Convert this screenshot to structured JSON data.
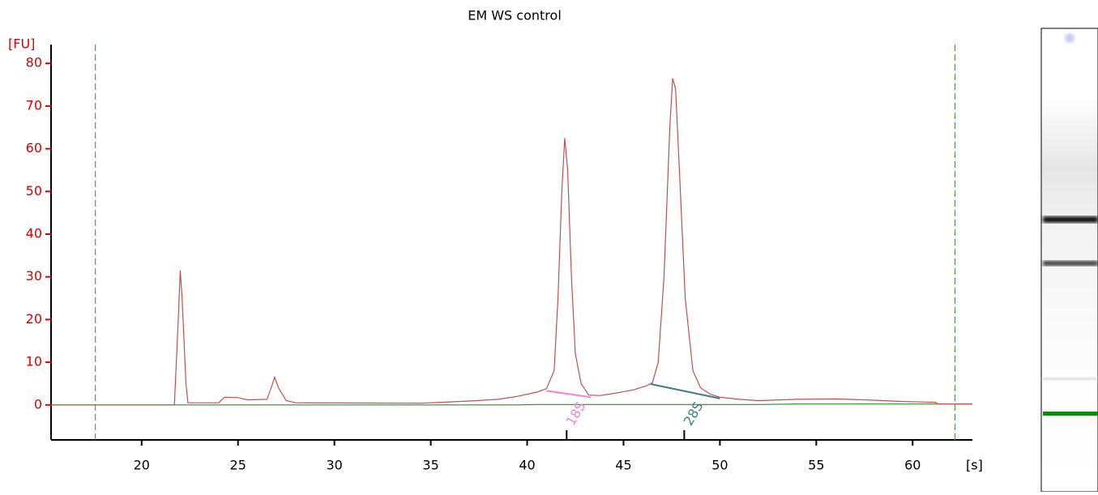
{
  "chart_data": {
    "type": "line",
    "title": "EM WS control",
    "ylabel": "[FU]",
    "xlabel": "[s]",
    "x": [
      15.3,
      21.7,
      21.9,
      22.0,
      22.1,
      22.3,
      22.4,
      24.0,
      24.3,
      25.0,
      25.5,
      26.5,
      26.8,
      26.9,
      27.1,
      27.5,
      28.0,
      34.5,
      35.5,
      37.0,
      38.5,
      39.5,
      40.5,
      41.0,
      41.4,
      41.6,
      41.8,
      41.95,
      42.1,
      42.3,
      42.5,
      42.8,
      43.2,
      43.8,
      44.5,
      45.5,
      46.2,
      46.5,
      46.8,
      47.1,
      47.4,
      47.55,
      47.7,
      47.9,
      48.2,
      48.6,
      49.0,
      49.5,
      50.0,
      51.0,
      52.0,
      54.0,
      56.0,
      58.0,
      59.5,
      61.2,
      61.3,
      63.1
    ],
    "series": [
      {
        "color": "#c0504d",
        "values": [
          0,
          0,
          20,
          31.5,
          25,
          5,
          0.5,
          0.5,
          1.8,
          1.7,
          1.2,
          1.3,
          5,
          6.5,
          4,
          1,
          0.5,
          0.4,
          0.6,
          0.9,
          1.3,
          2,
          3,
          3.8,
          8,
          25,
          50,
          62.5,
          55,
          30,
          12,
          5,
          2.3,
          2.2,
          2.7,
          3.5,
          4.5,
          5.2,
          10,
          30,
          65,
          76.5,
          74,
          55,
          25,
          8,
          4,
          2.5,
          1.8,
          1.3,
          1,
          1.3,
          1.4,
          1.1,
          0.8,
          0.6,
          0.2,
          0.2
        ]
      },
      {
        "color": "#2e8b2e",
        "values": [
          0,
          0,
          0,
          0,
          0,
          0,
          0,
          0,
          0,
          0,
          0,
          0,
          0,
          0,
          0,
          0,
          0,
          0,
          0,
          0,
          0,
          0,
          0.1,
          0.1,
          0.1,
          0.1,
          0.1,
          0.1,
          0.1,
          0.1,
          0.1,
          0.1,
          0.1,
          0.1,
          0.1,
          0.1,
          0.1,
          0.1,
          0.1,
          0.1,
          0.1,
          0.1,
          0.1,
          0.1,
          0.1,
          0.1,
          0.1,
          0.1,
          0.1,
          0.1,
          0.1,
          0.2,
          0.2,
          0.2,
          0.2,
          0.2,
          0.2,
          0.2
        ]
      }
    ],
    "xlim": [
      15.3,
      63.1
    ],
    "ylim": [
      -8.2,
      84.4
    ],
    "xticks": [
      20,
      25,
      30,
      35,
      40,
      45,
      50,
      55,
      60
    ],
    "yticks": [
      0,
      10,
      20,
      30,
      40,
      50,
      60,
      70,
      80
    ],
    "markers": [
      17.6,
      62.2
    ],
    "peaks": [
      {
        "label": "18S",
        "color": "#ee82d8",
        "x": [
          41.0,
          43.3
        ],
        "y": [
          3.3,
          1.8
        ],
        "tick": 42.05
      },
      {
        "label": "28S",
        "color": "#3f7f7f",
        "x": [
          46.4,
          50.0
        ],
        "y": [
          4.9,
          1.5
        ],
        "tick": 48.15
      }
    ]
  }
}
